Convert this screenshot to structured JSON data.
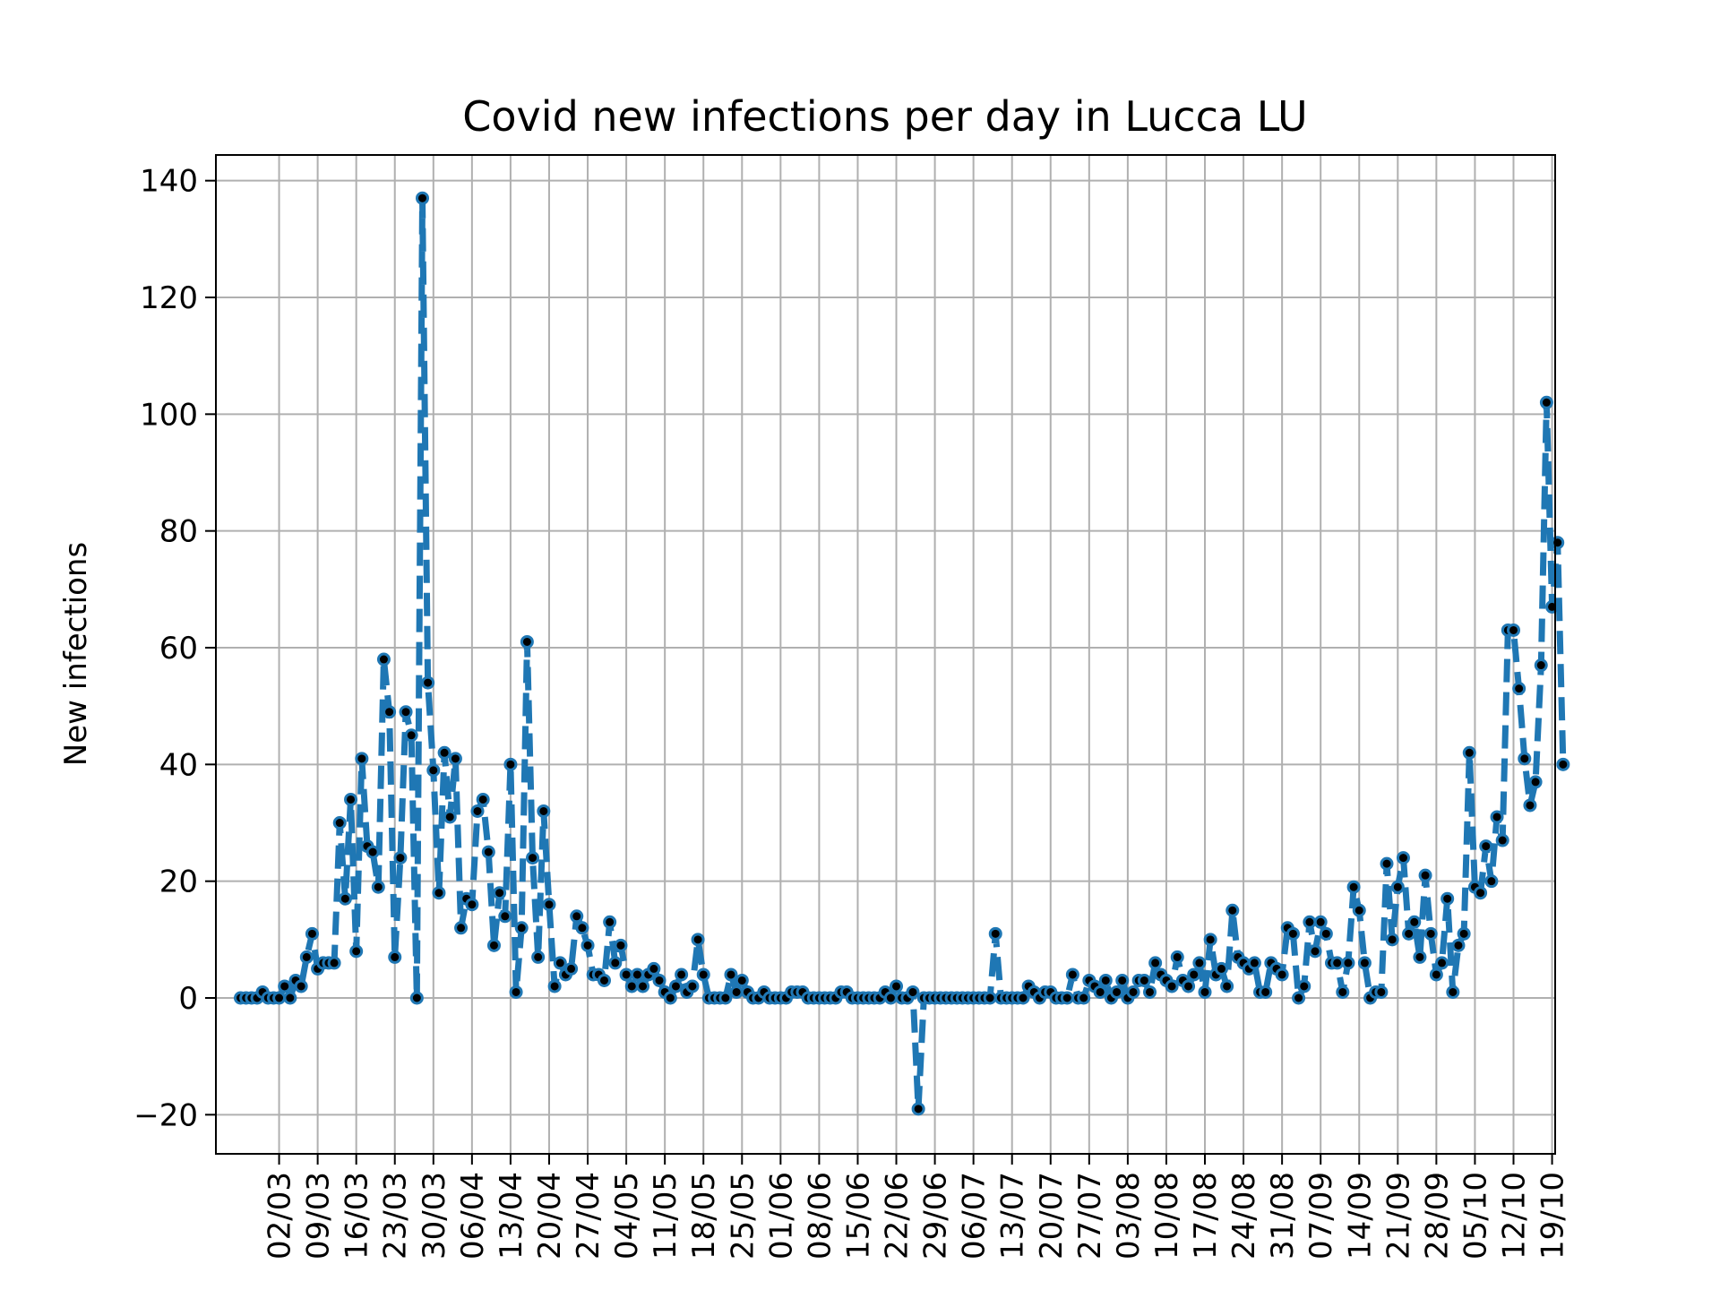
{
  "chart_data": {
    "type": "line",
    "title": "Covid new infections per day in Lucca LU",
    "xlabel": "",
    "ylabel": "New infections",
    "x_start": "24/02",
    "y_ticks": [
      -20,
      0,
      20,
      40,
      60,
      80,
      100,
      120,
      140
    ],
    "y_tick_labels": [
      "−20",
      "0",
      "20",
      "40",
      "60",
      "80",
      "100",
      "120",
      "140"
    ],
    "ylim": [
      -26.7,
      144.4
    ],
    "x_tick_labels": [
      "02/03",
      "09/03",
      "16/03",
      "23/03",
      "30/03",
      "06/04",
      "13/04",
      "20/04",
      "27/04",
      "04/05",
      "11/05",
      "18/05",
      "25/05",
      "01/06",
      "08/06",
      "15/06",
      "22/06",
      "29/06",
      "06/07",
      "13/07",
      "20/07",
      "27/07",
      "03/08",
      "10/08",
      "17/08",
      "24/08",
      "31/08",
      "07/09",
      "14/09",
      "21/09",
      "28/09",
      "05/10",
      "12/10",
      "19/10"
    ],
    "grid": true,
    "line_color": "#1f77b4",
    "marker_color": "#000000",
    "line_style": "dashed",
    "values": [
      0,
      0,
      0,
      0,
      1,
      0,
      0,
      0,
      2,
      0,
      3,
      2,
      7,
      11,
      5,
      6,
      6,
      6,
      30,
      17,
      34,
      8,
      41,
      26,
      25,
      19,
      58,
      49,
      7,
      24,
      49,
      45,
      0,
      137,
      54,
      39,
      18,
      42,
      31,
      41,
      12,
      17,
      16,
      32,
      34,
      25,
      9,
      18,
      14,
      40,
      1,
      12,
      61,
      24,
      7,
      32,
      16,
      2,
      6,
      4,
      5,
      14,
      12,
      9,
      4,
      4,
      3,
      13,
      6,
      9,
      4,
      2,
      4,
      2,
      4,
      5,
      3,
      1,
      0,
      2,
      4,
      1,
      2,
      10,
      4,
      0,
      0,
      0,
      0,
      4,
      1,
      3,
      1,
      0,
      0,
      1,
      0,
      0,
      0,
      0,
      1,
      1,
      1,
      0,
      0,
      0,
      0,
      0,
      0,
      1,
      1,
      0,
      0,
      0,
      0,
      0,
      0,
      1,
      0,
      2,
      0,
      0,
      1,
      -19,
      0,
      0,
      0,
      0,
      0,
      0,
      0,
      0,
      0,
      0,
      0,
      0,
      0,
      11,
      0,
      0,
      0,
      0,
      0,
      2,
      1,
      0,
      1,
      1,
      0,
      0,
      0,
      4,
      0,
      0,
      3,
      2,
      1,
      3,
      0,
      1,
      3,
      0,
      1,
      3,
      3,
      1,
      6,
      4,
      3,
      2,
      7,
      3,
      2,
      4,
      6,
      1,
      10,
      4,
      5,
      2,
      15,
      7,
      6,
      5,
      6,
      1,
      1,
      6,
      5,
      4,
      12,
      11,
      0,
      2,
      13,
      8,
      13,
      11,
      6,
      6,
      1,
      6,
      19,
      15,
      6,
      0,
      1,
      1,
      23,
      10,
      19,
      24,
      11,
      13,
      7,
      21,
      11,
      4,
      6,
      17,
      1,
      9,
      11,
      42,
      19,
      18,
      26,
      20,
      31,
      27,
      63,
      63,
      53,
      41,
      33,
      37,
      57,
      102,
      67,
      78,
      40
    ]
  }
}
